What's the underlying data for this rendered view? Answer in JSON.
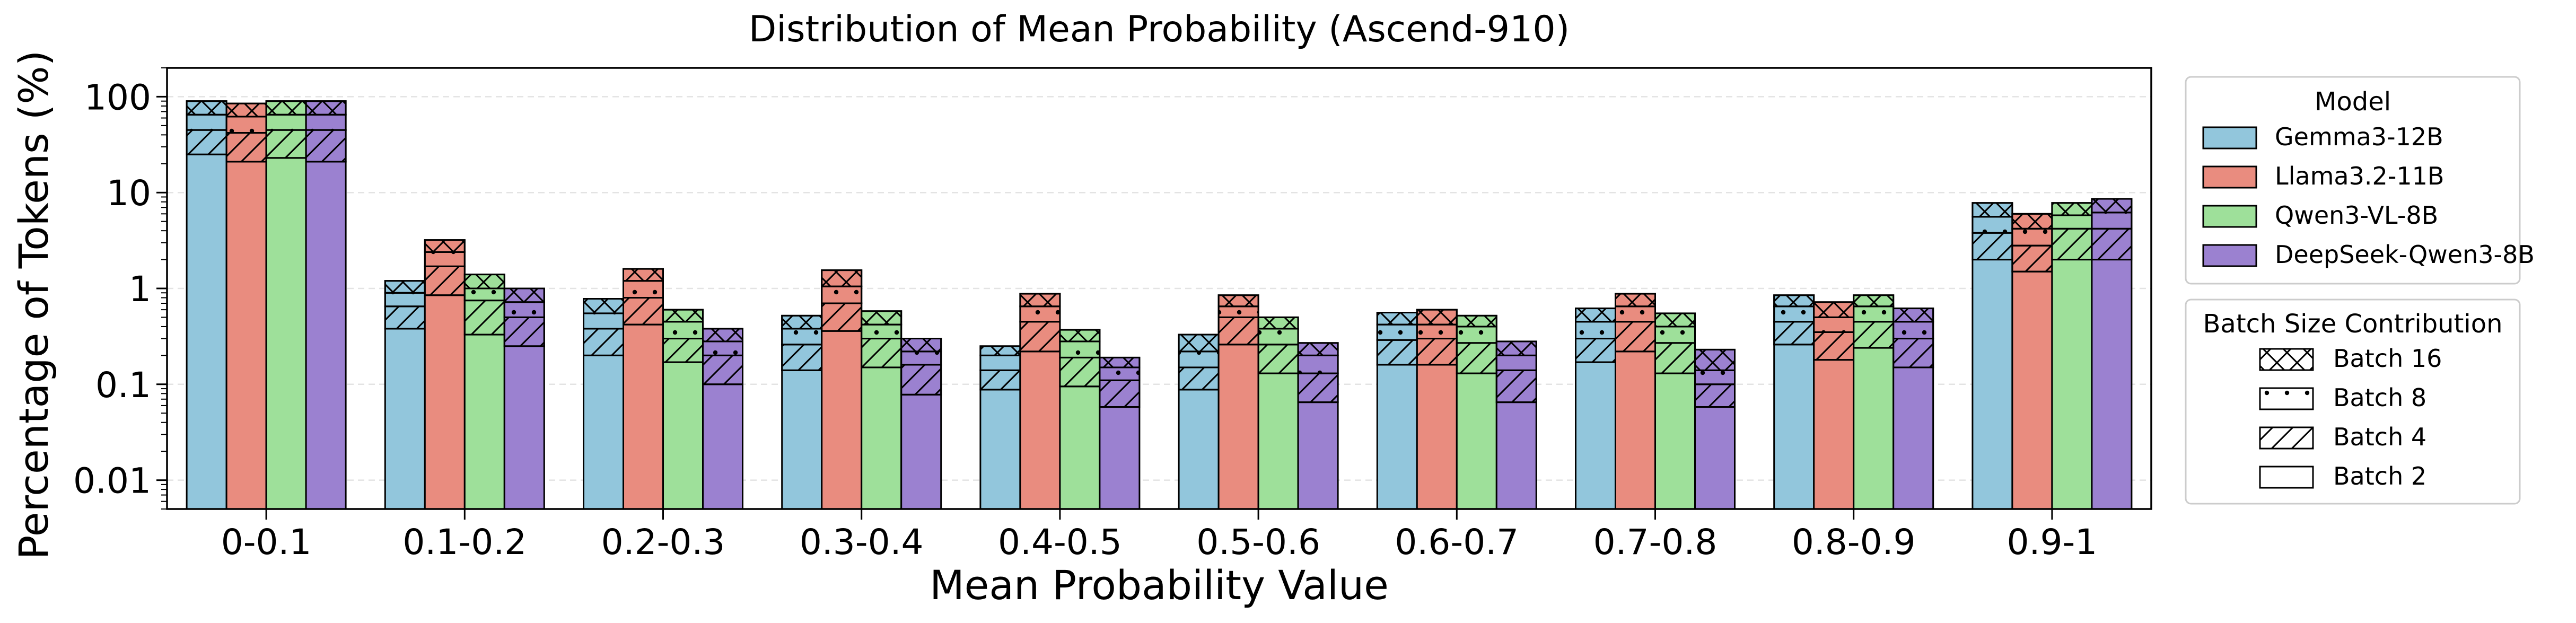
{
  "chart_data": {
    "type": "bar",
    "title": "Distribution of Mean Probability (Ascend-910)",
    "xlabel": "Mean Probability Value",
    "ylabel": "Percentage of Tokens (%)",
    "yscale": "log",
    "ylim": [
      0.005,
      200
    ],
    "yticks": [
      0.01,
      0.1,
      1,
      10,
      100
    ],
    "ytick_labels": [
      "0.01",
      "0.1",
      "1",
      "10",
      "100"
    ],
    "grid": "horizontal dashed",
    "categories": [
      "0-0.1",
      "0.1-0.2",
      "0.2-0.3",
      "0.3-0.4",
      "0.4-0.5",
      "0.5-0.6",
      "0.6-0.7",
      "0.7-0.8",
      "0.8-0.9",
      "0.9-1"
    ],
    "stack_order": [
      "Batch 2",
      "Batch 4",
      "Batch 8",
      "Batch 16"
    ],
    "series": [
      {
        "name": "Gemma3-12B",
        "color": "#92c6dc",
        "cumulative": [
          [
            25,
            45,
            65,
            90
          ],
          [
            0.38,
            0.65,
            0.9,
            1.2
          ],
          [
            0.2,
            0.38,
            0.55,
            0.78
          ],
          [
            0.14,
            0.26,
            0.38,
            0.52
          ],
          [
            0.088,
            0.14,
            0.2,
            0.25
          ],
          [
            0.088,
            0.15,
            0.22,
            0.33
          ],
          [
            0.16,
            0.29,
            0.42,
            0.56
          ],
          [
            0.17,
            0.3,
            0.45,
            0.62
          ],
          [
            0.26,
            0.45,
            0.65,
            0.85
          ],
          [
            2.0,
            3.8,
            5.6,
            7.8
          ]
        ]
      },
      {
        "name": "Llama3.2-11B",
        "color": "#e98c7f",
        "cumulative": [
          [
            21,
            42,
            62,
            85
          ],
          [
            0.85,
            1.7,
            2.4,
            3.2
          ],
          [
            0.42,
            0.8,
            1.2,
            1.6
          ],
          [
            0.36,
            0.7,
            1.05,
            1.55
          ],
          [
            0.22,
            0.45,
            0.65,
            0.88
          ],
          [
            0.26,
            0.5,
            0.65,
            0.85
          ],
          [
            0.16,
            0.3,
            0.42,
            0.6
          ],
          [
            0.22,
            0.45,
            0.65,
            0.88
          ],
          [
            0.18,
            0.35,
            0.5,
            0.72
          ],
          [
            1.5,
            2.8,
            4.2,
            6.0
          ]
        ]
      },
      {
        "name": "Qwen3-VL-8B",
        "color": "#9ee09a",
        "cumulative": [
          [
            23,
            45,
            65,
            90
          ],
          [
            0.33,
            0.75,
            1.0,
            1.4
          ],
          [
            0.17,
            0.3,
            0.45,
            0.6
          ],
          [
            0.15,
            0.3,
            0.42,
            0.58
          ],
          [
            0.095,
            0.19,
            0.28,
            0.37
          ],
          [
            0.13,
            0.26,
            0.38,
            0.5
          ],
          [
            0.13,
            0.27,
            0.4,
            0.52
          ],
          [
            0.13,
            0.27,
            0.4,
            0.55
          ],
          [
            0.24,
            0.45,
            0.65,
            0.85
          ],
          [
            2.0,
            4.2,
            5.8,
            7.8
          ]
        ]
      },
      {
        "name": "DeepSeek-Qwen3-8B",
        "color": "#9b81d0",
        "cumulative": [
          [
            21,
            45,
            65,
            90
          ],
          [
            0.25,
            0.5,
            0.72,
            1.0
          ],
          [
            0.1,
            0.2,
            0.28,
            0.38
          ],
          [
            0.078,
            0.16,
            0.22,
            0.3
          ],
          [
            0.058,
            0.11,
            0.15,
            0.19
          ],
          [
            0.065,
            0.13,
            0.2,
            0.27
          ],
          [
            0.065,
            0.14,
            0.2,
            0.28
          ],
          [
            0.058,
            0.1,
            0.14,
            0.23
          ],
          [
            0.15,
            0.3,
            0.45,
            0.62
          ],
          [
            2.0,
            4.2,
            6.2,
            8.6
          ]
        ]
      }
    ],
    "legend_model": {
      "title": "Model",
      "placement": "right-top",
      "entries": [
        "Gemma3-12B",
        "Llama3.2-11B",
        "Qwen3-VL-8B",
        "DeepSeek-Qwen3-8B"
      ]
    },
    "legend_batch": {
      "title": "Batch Size Contribution",
      "placement": "right-middle",
      "entries": [
        {
          "label": "Batch 16",
          "pattern": "crosshatch"
        },
        {
          "label": "Batch 8",
          "pattern": "dots"
        },
        {
          "label": "Batch 4",
          "pattern": "diagonal"
        },
        {
          "label": "Batch 2",
          "pattern": "solid"
        }
      ]
    }
  }
}
